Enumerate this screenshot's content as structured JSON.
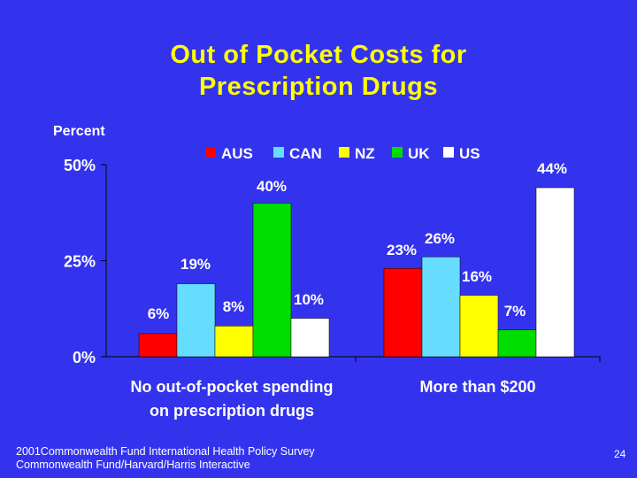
{
  "slide": {
    "title_line1": "Out of Pocket Costs for",
    "title_line2": "Prescription Drugs",
    "source_line1": "2001Commonwealth Fund International Health Policy Survey",
    "source_line2": "Commonwealth Fund/Harvard/Harris Interactive",
    "page_number": "24"
  },
  "chart_data": {
    "type": "bar",
    "title": "Out of Pocket Costs for Prescription Drugs",
    "ylabel": "Percent",
    "xlabel": "",
    "ylim": [
      0,
      50
    ],
    "yticks": [
      "0%",
      "25%",
      "50%"
    ],
    "ytick_values": [
      0,
      25,
      50
    ],
    "legend_position": "top",
    "grid": false,
    "categories": [
      "No out-of-pocket spending on prescription drugs",
      "More than $200"
    ],
    "category_lines": [
      [
        "No out-of-pocket spending",
        "on prescription drugs"
      ],
      [
        "More than $200"
      ]
    ],
    "series": [
      {
        "name": "AUS",
        "color": "#ff0000",
        "values": [
          6,
          23
        ],
        "labels": [
          "6%",
          "23%"
        ]
      },
      {
        "name": "CAN",
        "color": "#66ddff",
        "values": [
          19,
          26
        ],
        "labels": [
          "19%",
          "26%"
        ]
      },
      {
        "name": "NZ",
        "color": "#ffff00",
        "values": [
          8,
          16
        ],
        "labels": [
          "8%",
          "16%"
        ]
      },
      {
        "name": "UK",
        "color": "#00dd00",
        "values": [
          40,
          7
        ],
        "labels": [
          "40%",
          "7%"
        ]
      },
      {
        "name": "US",
        "color": "#ffffff",
        "values": [
          10,
          44
        ],
        "labels": [
          "10%",
          "44%"
        ]
      }
    ]
  }
}
